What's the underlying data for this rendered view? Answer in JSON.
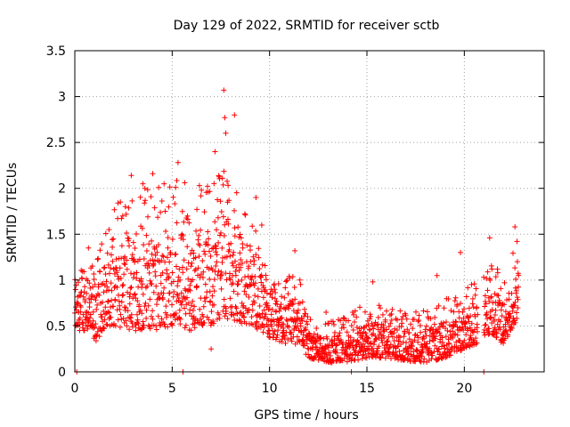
{
  "chart_data": {
    "type": "scatter",
    "title": "Day 129 of 2022, SRMTID for receiver sctb",
    "xlabel": "GPS time / hours",
    "ylabel": "SRMTID / TECUs",
    "xlim": [
      0,
      24.1
    ],
    "ylim": [
      0,
      3.5
    ],
    "x_ticks": [
      0,
      5,
      10,
      15,
      20
    ],
    "x_tick_labels": [
      "0",
      "5",
      "10",
      "15",
      "20"
    ],
    "y_ticks": [
      0,
      0.5,
      1,
      1.5,
      2,
      2.5,
      3,
      3.5
    ],
    "y_tick_labels": [
      "0",
      "0.5",
      "1",
      "1.5",
      "2",
      "2.5",
      "3",
      "3.5"
    ],
    "grid": true,
    "marker": "+",
    "series": [
      {
        "name": "SRMTID",
        "color": "#ff0000",
        "envelope": [
          {
            "t": 0.0,
            "lo": 0.45,
            "hi": 1.0
          },
          {
            "t": 0.6,
            "lo": 0.45,
            "hi": 1.35
          },
          {
            "t": 1.0,
            "lo": 0.3,
            "hi": 1.1
          },
          {
            "t": 1.6,
            "lo": 0.5,
            "hi": 1.6
          },
          {
            "t": 2.0,
            "lo": 0.5,
            "hi": 1.8
          },
          {
            "t": 3.0,
            "lo": 0.45,
            "hi": 2.0
          },
          {
            "t": 4.0,
            "lo": 0.45,
            "hi": 2.1
          },
          {
            "t": 5.0,
            "lo": 0.5,
            "hi": 2.2
          },
          {
            "t": 6.0,
            "lo": 0.45,
            "hi": 2.0
          },
          {
            "t": 7.0,
            "lo": 0.5,
            "hi": 2.1
          },
          {
            "t": 7.6,
            "lo": 0.6,
            "hi": 2.5
          },
          {
            "t": 8.2,
            "lo": 0.55,
            "hi": 2.0
          },
          {
            "t": 9.0,
            "lo": 0.5,
            "hi": 1.7
          },
          {
            "t": 9.5,
            "lo": 0.45,
            "hi": 1.5
          },
          {
            "t": 10.0,
            "lo": 0.35,
            "hi": 0.95
          },
          {
            "t": 11.0,
            "lo": 0.3,
            "hi": 1.05
          },
          {
            "t": 11.5,
            "lo": 0.3,
            "hi": 1.2
          },
          {
            "t": 12.0,
            "lo": 0.15,
            "hi": 0.6
          },
          {
            "t": 13.0,
            "lo": 0.1,
            "hi": 0.6
          },
          {
            "t": 14.0,
            "lo": 0.1,
            "hi": 0.6
          },
          {
            "t": 15.0,
            "lo": 0.15,
            "hi": 0.8
          },
          {
            "t": 16.0,
            "lo": 0.15,
            "hi": 0.7
          },
          {
            "t": 17.0,
            "lo": 0.12,
            "hi": 0.65
          },
          {
            "t": 18.0,
            "lo": 0.1,
            "hi": 0.7
          },
          {
            "t": 19.0,
            "lo": 0.15,
            "hi": 0.8
          },
          {
            "t": 20.0,
            "lo": 0.25,
            "hi": 0.9
          },
          {
            "t": 20.6,
            "lo": 0.3,
            "hi": 1.0
          },
          {
            "t": 21.1,
            "lo": 0.4,
            "hi": 1.1
          },
          {
            "t": 21.5,
            "lo": 0.4,
            "hi": 1.2
          },
          {
            "t": 22.0,
            "lo": 0.3,
            "hi": 1.0
          },
          {
            "t": 22.8,
            "lo": 0.6,
            "hi": 1.5
          }
        ],
        "gaps": [
          [
            20.7,
            21.0
          ]
        ],
        "outliers": [
          {
            "x": 7.65,
            "y": 3.07
          },
          {
            "x": 8.2,
            "y": 2.8
          },
          {
            "x": 7.7,
            "y": 2.77
          },
          {
            "x": 7.75,
            "y": 2.6
          },
          {
            "x": 5.3,
            "y": 2.28
          },
          {
            "x": 4.0,
            "y": 2.16
          },
          {
            "x": 3.5,
            "y": 2.05
          },
          {
            "x": 2.9,
            "y": 2.14
          },
          {
            "x": 7.2,
            "y": 2.4
          },
          {
            "x": 9.3,
            "y": 1.9
          },
          {
            "x": 22.6,
            "y": 1.58
          },
          {
            "x": 21.3,
            "y": 1.46
          },
          {
            "x": 0.7,
            "y": 1.35
          },
          {
            "x": 9.6,
            "y": 1.6
          },
          {
            "x": 11.3,
            "y": 1.32
          },
          {
            "x": 19.8,
            "y": 1.3
          },
          {
            "x": 18.6,
            "y": 1.05
          },
          {
            "x": 15.3,
            "y": 0.98
          },
          {
            "x": 7.0,
            "y": 0.25
          },
          {
            "x": 12.9,
            "y": 0.65
          }
        ],
        "zeros": [
          0.1,
          5.55,
          14.2,
          21.0
        ]
      }
    ]
  }
}
